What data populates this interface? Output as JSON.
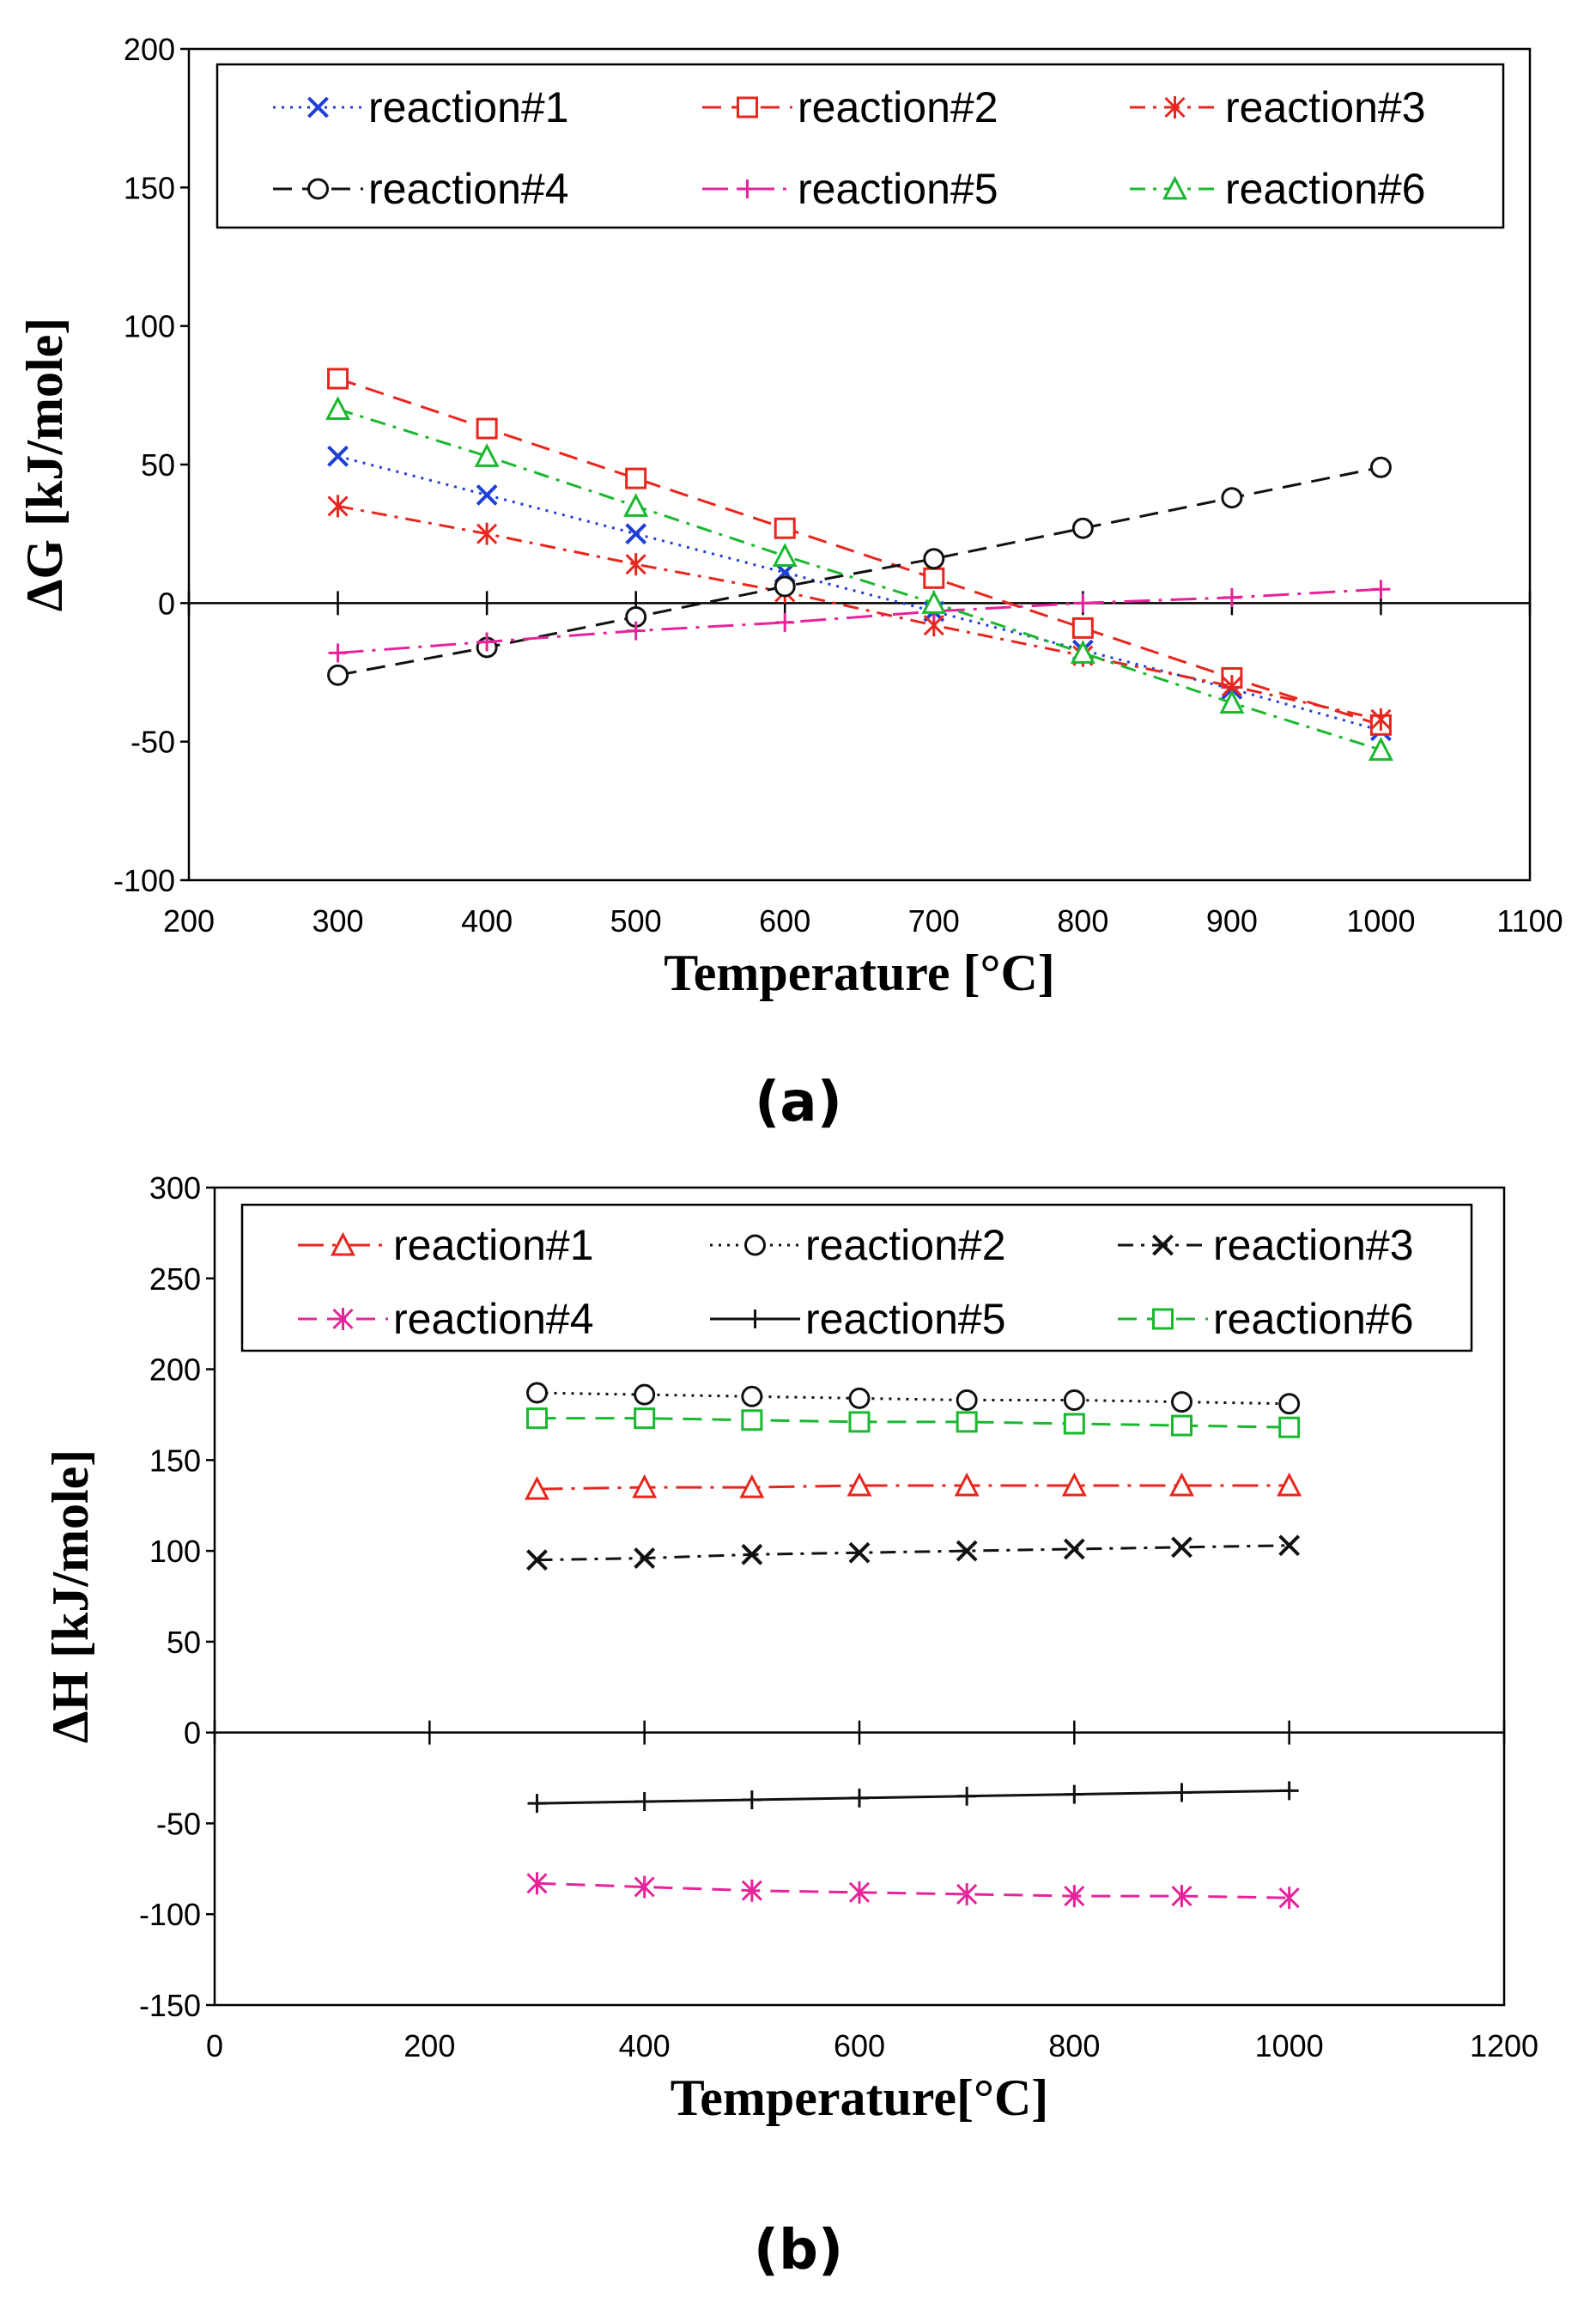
{
  "chart_data": [
    {
      "type": "line",
      "panel_label": "(a)",
      "xlabel": "Temperature [°C]",
      "ylabel": "ΔG [kJ/mole]",
      "xlim": [
        200,
        1100
      ],
      "ylim": [
        -100,
        200
      ],
      "xticks": [
        "200",
        "300",
        "400",
        "500",
        "600",
        "700",
        "800",
        "900",
        "1000",
        "1100"
      ],
      "yticks": [
        "-100",
        "-50",
        "0",
        "50",
        "100",
        "150",
        "200"
      ],
      "grid": false,
      "legend": "top, inside, 3 columns",
      "x": [
        300,
        400,
        500,
        600,
        700,
        800,
        900,
        1000
      ],
      "series": [
        {
          "name": "reaction#1",
          "color": "#1f3fd6",
          "marker": "x",
          "dash": "dot",
          "values": [
            53,
            39,
            25,
            11,
            -3,
            -17,
            -31,
            -46
          ]
        },
        {
          "name": "reaction#2",
          "color": "#e8261e",
          "marker": "square",
          "dash": "dash",
          "values": [
            81,
            63,
            45,
            27,
            9,
            -9,
            -27,
            -44
          ]
        },
        {
          "name": "reaction#3",
          "color": "#e8261e",
          "marker": "asterisk",
          "dash": "dashdot",
          "values": [
            35,
            25,
            14,
            4,
            -8,
            -19,
            -30,
            -42
          ]
        },
        {
          "name": "reaction#4",
          "color": "#111111",
          "marker": "circle",
          "dash": "dash",
          "values": [
            -26,
            -16,
            -5,
            6,
            16,
            27,
            38,
            49
          ]
        },
        {
          "name": "reaction#5",
          "color": "#e8239a",
          "marker": "plus",
          "dash": "longdashdot",
          "values": [
            -18,
            -14,
            -10,
            -7,
            -3,
            0,
            2,
            5
          ]
        },
        {
          "name": "reaction#6",
          "color": "#19b82e",
          "marker": "triangle",
          "dash": "dashdot",
          "values": [
            70,
            53,
            35,
            17,
            0,
            -18,
            -36,
            -53
          ]
        }
      ]
    },
    {
      "type": "line",
      "panel_label": "(b)",
      "xlabel": "Temperature[°C]",
      "ylabel": "ΔH [kJ/mole]",
      "xlim": [
        0,
        1200
      ],
      "ylim": [
        -150,
        300
      ],
      "xticks": [
        "0",
        "200",
        "400",
        "600",
        "800",
        "1000",
        "1200"
      ],
      "yticks": [
        "-150",
        "-100",
        "-50",
        "0",
        "50",
        "100",
        "150",
        "200",
        "250",
        "300"
      ],
      "grid": false,
      "legend": "top, inside, 3 columns",
      "x": [
        300,
        400,
        500,
        600,
        700,
        800,
        900,
        1000
      ],
      "series": [
        {
          "name": "reaction#1",
          "color": "#e8261e",
          "marker": "triangle",
          "dash": "longdashdot",
          "values": [
            134,
            135,
            135,
            136,
            136,
            136,
            136,
            136
          ]
        },
        {
          "name": "reaction#2",
          "color": "#111111",
          "marker": "circle",
          "dash": "dot",
          "values": [
            187,
            186,
            185,
            184,
            183,
            183,
            182,
            181
          ]
        },
        {
          "name": "reaction#3",
          "color": "#111111",
          "marker": "x",
          "dash": "dashdot",
          "values": [
            95,
            96,
            98,
            99,
            100,
            101,
            102,
            103
          ]
        },
        {
          "name": "reaction#4",
          "color": "#e8239a",
          "marker": "asterisk",
          "dash": "dash",
          "values": [
            -83,
            -85,
            -87,
            -88,
            -89,
            -90,
            -90,
            -91
          ]
        },
        {
          "name": "reaction#5",
          "color": "#111111",
          "marker": "plus",
          "dash": "solid",
          "values": [
            -39,
            -38,
            -37,
            -36,
            -35,
            -34,
            -33,
            -32
          ]
        },
        {
          "name": "reaction#6",
          "color": "#19b82e",
          "marker": "square",
          "dash": "dash",
          "values": [
            173,
            173,
            172,
            171,
            171,
            170,
            169,
            168
          ]
        }
      ]
    }
  ]
}
